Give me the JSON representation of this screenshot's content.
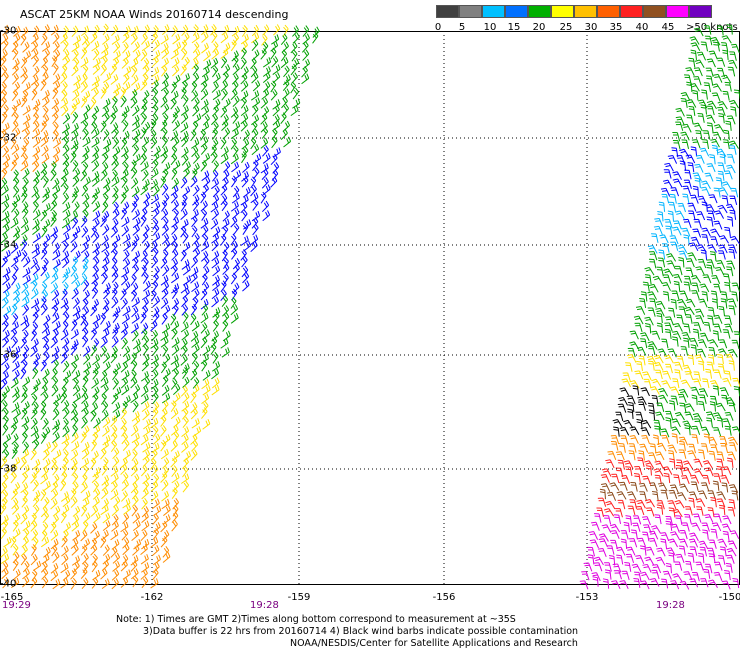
{
  "title": "ASCAT 25KM NOAA Winds 20160714 descending",
  "colorbar": {
    "labels": [
      "0",
      "5",
      "10",
      "15",
      "20",
      "25",
      "30",
      "35",
      "40",
      "45",
      ">50 knots"
    ],
    "colors": [
      "#404040",
      "#808080",
      "#00c0ff",
      "#0070ff",
      "#00b000",
      "#ffff00",
      "#ffc000",
      "#ff6000",
      "#ff2020",
      "#905020",
      "#ff00ff",
      "#7000c0"
    ]
  },
  "axes": {
    "lat_labels": [
      "-30",
      "-32",
      "-34",
      "-36",
      "-38",
      "-40"
    ],
    "lon_labels": [
      "-165",
      "-162",
      "-159",
      "-156",
      "-153",
      "-150"
    ]
  },
  "times": [
    "19:29",
    "19:28",
    "19:28"
  ],
  "notes": [
    "Note: 1) Times are GMT 2)Times along bottom correspond to measurement at ~35S",
    "3)Data buffer is 22 hrs from 20160714 4) Black wind barbs indicate possible contamination",
    "NOAA/NESDIS/Center for Satellite Applications and Research"
  ],
  "swaths": [
    {
      "name": "left-swath",
      "time": "19:29"
    },
    {
      "name": "right-swath",
      "time": "19:28"
    }
  ]
}
